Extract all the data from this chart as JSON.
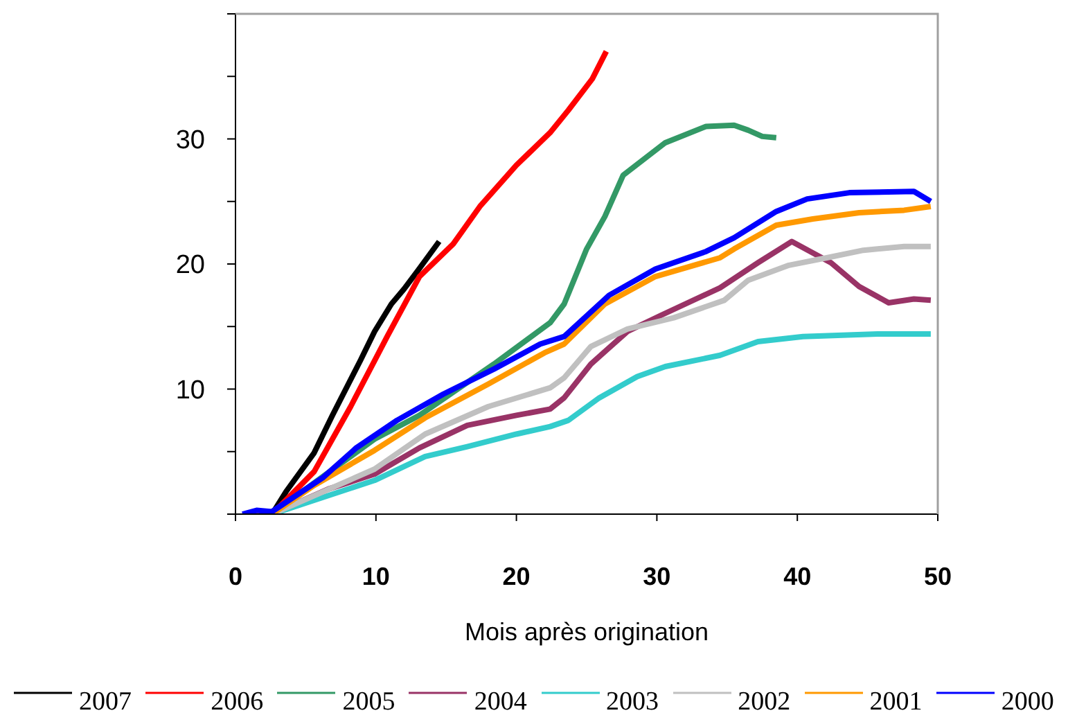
{
  "chart_data": {
    "type": "line",
    "xlabel": "Mois après origination",
    "xlim": [
      0,
      50
    ],
    "xticks": [
      0,
      10,
      20,
      30,
      40,
      50
    ],
    "ylim": [
      0,
      40
    ],
    "yticks": [
      {
        "value": 0,
        "label": null
      },
      {
        "value": 5,
        "label": null
      },
      10,
      {
        "value": 15,
        "label": null
      },
      20,
      {
        "value": 25,
        "label": null
      },
      30,
      {
        "value": 35,
        "label": null
      },
      {
        "value": 40,
        "label": null
      }
    ],
    "grid": false,
    "legend": "bottom",
    "marker": "none",
    "line_style": "solid",
    "series": [
      {
        "name": "2007",
        "color": "#000000",
        "x": [
          0.5,
          2.6,
          3.6,
          5.6,
          6.9,
          8.9,
          9.9,
          11.1,
          12,
          13,
          14.5
        ],
        "values": [
          0,
          0,
          1.8,
          4.9,
          7.9,
          12.3,
          14.6,
          16.8,
          18,
          19.5,
          21.8
        ]
      },
      {
        "name": "2006",
        "color": "#ff0000",
        "x": [
          1,
          2.6,
          5.6,
          8.2,
          10.8,
          13.1,
          15.5,
          17.4,
          20,
          22.4,
          23.7,
          25.4,
          26.4
        ],
        "values": [
          0,
          0,
          3.4,
          8.6,
          14.2,
          19,
          21.6,
          24.6,
          27.9,
          30.5,
          32.3,
          34.8,
          37
        ]
      },
      {
        "name": "2005",
        "color": "#339966",
        "x": [
          1,
          2.6,
          5.6,
          9.9,
          13.1,
          18.4,
          22.4,
          23.4,
          25,
          26.3,
          27.6,
          30.6,
          33.5,
          35.5,
          36.5,
          37.5,
          38.5
        ],
        "values": [
          0,
          0,
          2.5,
          6,
          7.9,
          12,
          15.3,
          16.8,
          21.2,
          23.8,
          27.1,
          29.7,
          31,
          31.1,
          30.7,
          30.2,
          30.1
        ]
      },
      {
        "name": "2004",
        "color": "#993366",
        "x": [
          1,
          2.6,
          6.6,
          9.9,
          13.1,
          16.5,
          20,
          22.4,
          23.4,
          25.3,
          27.9,
          30.3,
          34.5,
          37.2,
          39.6,
          42.4,
          44.4,
          46.5,
          48.3,
          49.5
        ],
        "values": [
          0,
          0,
          2,
          3.2,
          5.3,
          7.1,
          7.9,
          8.4,
          9.3,
          12,
          14.6,
          15.9,
          18.1,
          20.1,
          21.8,
          20.1,
          18.2,
          16.9,
          17.2,
          17.1
        ]
      },
      {
        "name": "2003",
        "color": "#33cccc",
        "x": [
          1,
          2.6,
          9.9,
          13.5,
          16.5,
          20,
          22.4,
          23.7,
          25.9,
          28.6,
          30.6,
          34.5,
          37.2,
          40.4,
          45.7,
          49.5
        ],
        "values": [
          0,
          0,
          2.7,
          4.6,
          5.4,
          6.4,
          7,
          7.5,
          9.3,
          11,
          11.8,
          12.7,
          13.8,
          14.2,
          14.4,
          14.4
        ]
      },
      {
        "name": "2002",
        "color": "#c0c0c0",
        "x": [
          1,
          2.6,
          9.9,
          13.5,
          18,
          22.4,
          23.4,
          25.3,
          27.9,
          31.2,
          34.8,
          36.5,
          39.4,
          42.1,
          44.7,
          47.6,
          49.5
        ],
        "values": [
          0,
          0,
          3.6,
          6.4,
          8.6,
          10.1,
          10.9,
          13.4,
          14.8,
          15.7,
          17.1,
          18.7,
          19.9,
          20.5,
          21.1,
          21.4,
          21.4
        ]
      },
      {
        "name": "2001",
        "color": "#ff9900",
        "x": [
          1,
          2.6,
          5.6,
          9.9,
          13.5,
          18,
          22,
          23.4,
          26.3,
          29.9,
          34.5,
          35.5,
          38.5,
          41.1,
          44.4,
          47.6,
          49.5
        ],
        "values": [
          0,
          0,
          2.3,
          5.1,
          7.7,
          10.4,
          12.9,
          13.6,
          16.8,
          19,
          20.5,
          21.2,
          23.1,
          23.6,
          24.1,
          24.3,
          24.6
        ]
      },
      {
        "name": "2000",
        "color": "#0000ff",
        "x": [
          0.5,
          1.5,
          2.6,
          6.2,
          8.6,
          11.5,
          14.8,
          18.4,
          21.7,
          23.4,
          26.6,
          29.9,
          33.5,
          35.5,
          38.5,
          40.7,
          43.7,
          48.3,
          49.5
        ],
        "values": [
          0,
          0.3,
          0.2,
          2.9,
          5.3,
          7.5,
          9.6,
          11.6,
          13.6,
          14.2,
          17.5,
          19.6,
          21,
          22.1,
          24.2,
          25.2,
          25.7,
          25.8,
          25
        ]
      }
    ]
  }
}
